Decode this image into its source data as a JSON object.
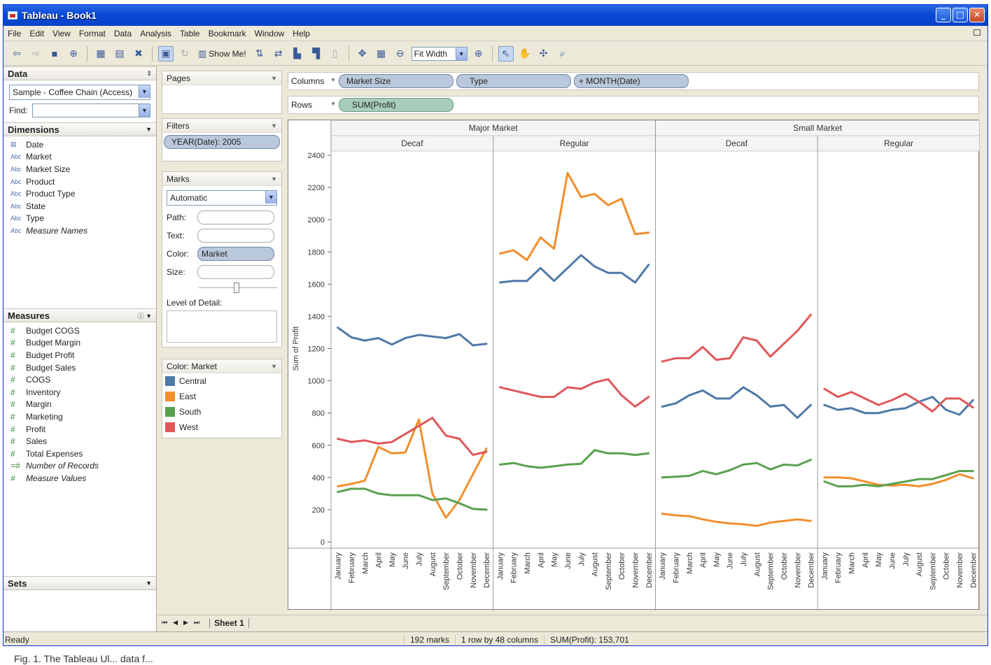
{
  "window": {
    "title": "Tableau - Book1"
  },
  "menu": [
    "File",
    "Edit",
    "View",
    "Format",
    "Data",
    "Analysis",
    "Table",
    "Bookmark",
    "Window",
    "Help"
  ],
  "toolbar": {
    "show_me": "Show Me!",
    "fit": "Fit Width"
  },
  "data_pane": {
    "header": "Data",
    "source": "Sample - Coffee Chain (Access)",
    "find_label": "Find:",
    "dimensions_header": "Dimensions",
    "dimensions": [
      {
        "icon": "date-icon",
        "label": "Date"
      },
      {
        "icon": "abc-icon",
        "label": "Market"
      },
      {
        "icon": "abc-icon",
        "label": "Market Size"
      },
      {
        "icon": "abc-icon",
        "label": "Product"
      },
      {
        "icon": "abc-icon",
        "label": "Product Type"
      },
      {
        "icon": "abc-icon",
        "label": "State"
      },
      {
        "icon": "abc-icon",
        "label": "Type"
      },
      {
        "icon": "abc-icon",
        "label": "Measure Names",
        "italic": true
      }
    ],
    "measures_header": "Measures",
    "measures": [
      {
        "label": "Budget COGS"
      },
      {
        "label": "Budget Margin"
      },
      {
        "label": "Budget Profit"
      },
      {
        "label": "Budget Sales"
      },
      {
        "label": "COGS"
      },
      {
        "label": "Inventory"
      },
      {
        "label": "Margin"
      },
      {
        "label": "Marketing"
      },
      {
        "label": "Profit"
      },
      {
        "label": "Sales"
      },
      {
        "label": "Total Expenses"
      },
      {
        "label": "Number of Records",
        "italic": true
      },
      {
        "label": "Measure Values",
        "italic": true
      }
    ],
    "sets_header": "Sets"
  },
  "shelves": {
    "pages": "Pages",
    "filters": "Filters",
    "filter_pill": "YEAR(Date): 2005",
    "marks": "Marks",
    "mark_type": "Automatic",
    "path": "Path:",
    "text": "Text:",
    "color": "Color:",
    "color_pill": "Market",
    "size": "Size:",
    "level_of_detail": "Level of Detail:",
    "legend_title": "Color: Market",
    "legend": [
      {
        "label": "Central",
        "color": "#4e79a7"
      },
      {
        "label": "East",
        "color": "#f28e2b"
      },
      {
        "label": "South",
        "color": "#59a14f"
      },
      {
        "label": "West",
        "color": "#e15759"
      }
    ],
    "columns_label": "Columns",
    "columns": [
      "Market Size",
      "Type",
      "+ MONTH(Date)"
    ],
    "rows_label": "Rows",
    "rows": [
      "SUM(Profit)"
    ]
  },
  "sheet_tab": "Sheet 1",
  "status": {
    "ready": "Ready",
    "marks": "192 marks",
    "dims": "1 row by 48 columns",
    "sum": "SUM(Profit): 153,701"
  },
  "caption": "Fig. 1. The Tableau Ul... data f...",
  "chart_data": {
    "type": "line",
    "ylabel": "Sum of Profit",
    "ylim": [
      0,
      2400
    ],
    "yticks": [
      0,
      200,
      400,
      600,
      800,
      1000,
      1200,
      1400,
      1600,
      1800,
      2000,
      2200,
      2400
    ],
    "months": [
      "January",
      "February",
      "March",
      "April",
      "May",
      "June",
      "July",
      "August",
      "September",
      "October",
      "November",
      "December"
    ],
    "panels": [
      {
        "market_size": "Major Market",
        "type": "Decaf",
        "series": [
          {
            "name": "Central",
            "values": [
              1330,
              1270,
              1250,
              1265,
              1225,
              1265,
              1285,
              1275,
              1265,
              1290,
              1220,
              1230
            ]
          },
          {
            "name": "East",
            "values": [
              345,
              360,
              380,
              590,
              550,
              555,
              760,
              300,
              150,
              260,
              420,
              580
            ]
          },
          {
            "name": "South",
            "values": [
              310,
              330,
              330,
              300,
              290,
              290,
              290,
              260,
              270,
              240,
              205,
              200
            ]
          },
          {
            "name": "West",
            "values": [
              640,
              620,
              630,
              610,
              620,
              670,
              720,
              770,
              660,
              640,
              540,
              560
            ]
          }
        ]
      },
      {
        "market_size": "Major Market",
        "type": "Regular",
        "series": [
          {
            "name": "Central",
            "values": [
              1610,
              1620,
              1620,
              1700,
              1620,
              1700,
              1780,
              1710,
              1670,
              1670,
              1610,
              1720
            ]
          },
          {
            "name": "East",
            "values": [
              1790,
              1810,
              1750,
              1890,
              1820,
              2290,
              2140,
              2160,
              2090,
              2130,
              1910,
              1920
            ]
          },
          {
            "name": "South",
            "values": [
              480,
              490,
              470,
              460,
              470,
              480,
              485,
              570,
              550,
              550,
              540,
              550
            ]
          },
          {
            "name": "West",
            "values": [
              960,
              940,
              920,
              900,
              900,
              960,
              950,
              990,
              1010,
              910,
              840,
              900
            ]
          }
        ]
      },
      {
        "market_size": "Small Market",
        "type": "Decaf",
        "series": [
          {
            "name": "Central",
            "values": [
              840,
              860,
              910,
              940,
              890,
              890,
              960,
              910,
              840,
              850,
              770,
              850
            ]
          },
          {
            "name": "East",
            "values": [
              175,
              165,
              160,
              140,
              125,
              115,
              110,
              100,
              120,
              130,
              140,
              130
            ]
          },
          {
            "name": "South",
            "values": [
              400,
              405,
              410,
              440,
              420,
              445,
              480,
              490,
              450,
              480,
              475,
              510
            ]
          },
          {
            "name": "West",
            "values": [
              1120,
              1140,
              1140,
              1210,
              1130,
              1140,
              1270,
              1250,
              1150,
              1230,
              1310,
              1410
            ]
          }
        ]
      },
      {
        "market_size": "Small Market",
        "type": "Regular",
        "series": [
          {
            "name": "Central",
            "values": [
              850,
              820,
              830,
              800,
              800,
              820,
              830,
              870,
              900,
              820,
              790,
              880
            ]
          },
          {
            "name": "East",
            "values": [
              400,
              400,
              395,
              375,
              355,
              350,
              355,
              345,
              360,
              385,
              420,
              395
            ]
          },
          {
            "name": "South",
            "values": [
              375,
              345,
              345,
              355,
              345,
              360,
              375,
              390,
              390,
              415,
              440,
              440
            ]
          },
          {
            "name": "West",
            "values": [
              950,
              900,
              930,
              890,
              850,
              880,
              920,
              870,
              810,
              890,
              890,
              835
            ]
          }
        ]
      }
    ]
  }
}
